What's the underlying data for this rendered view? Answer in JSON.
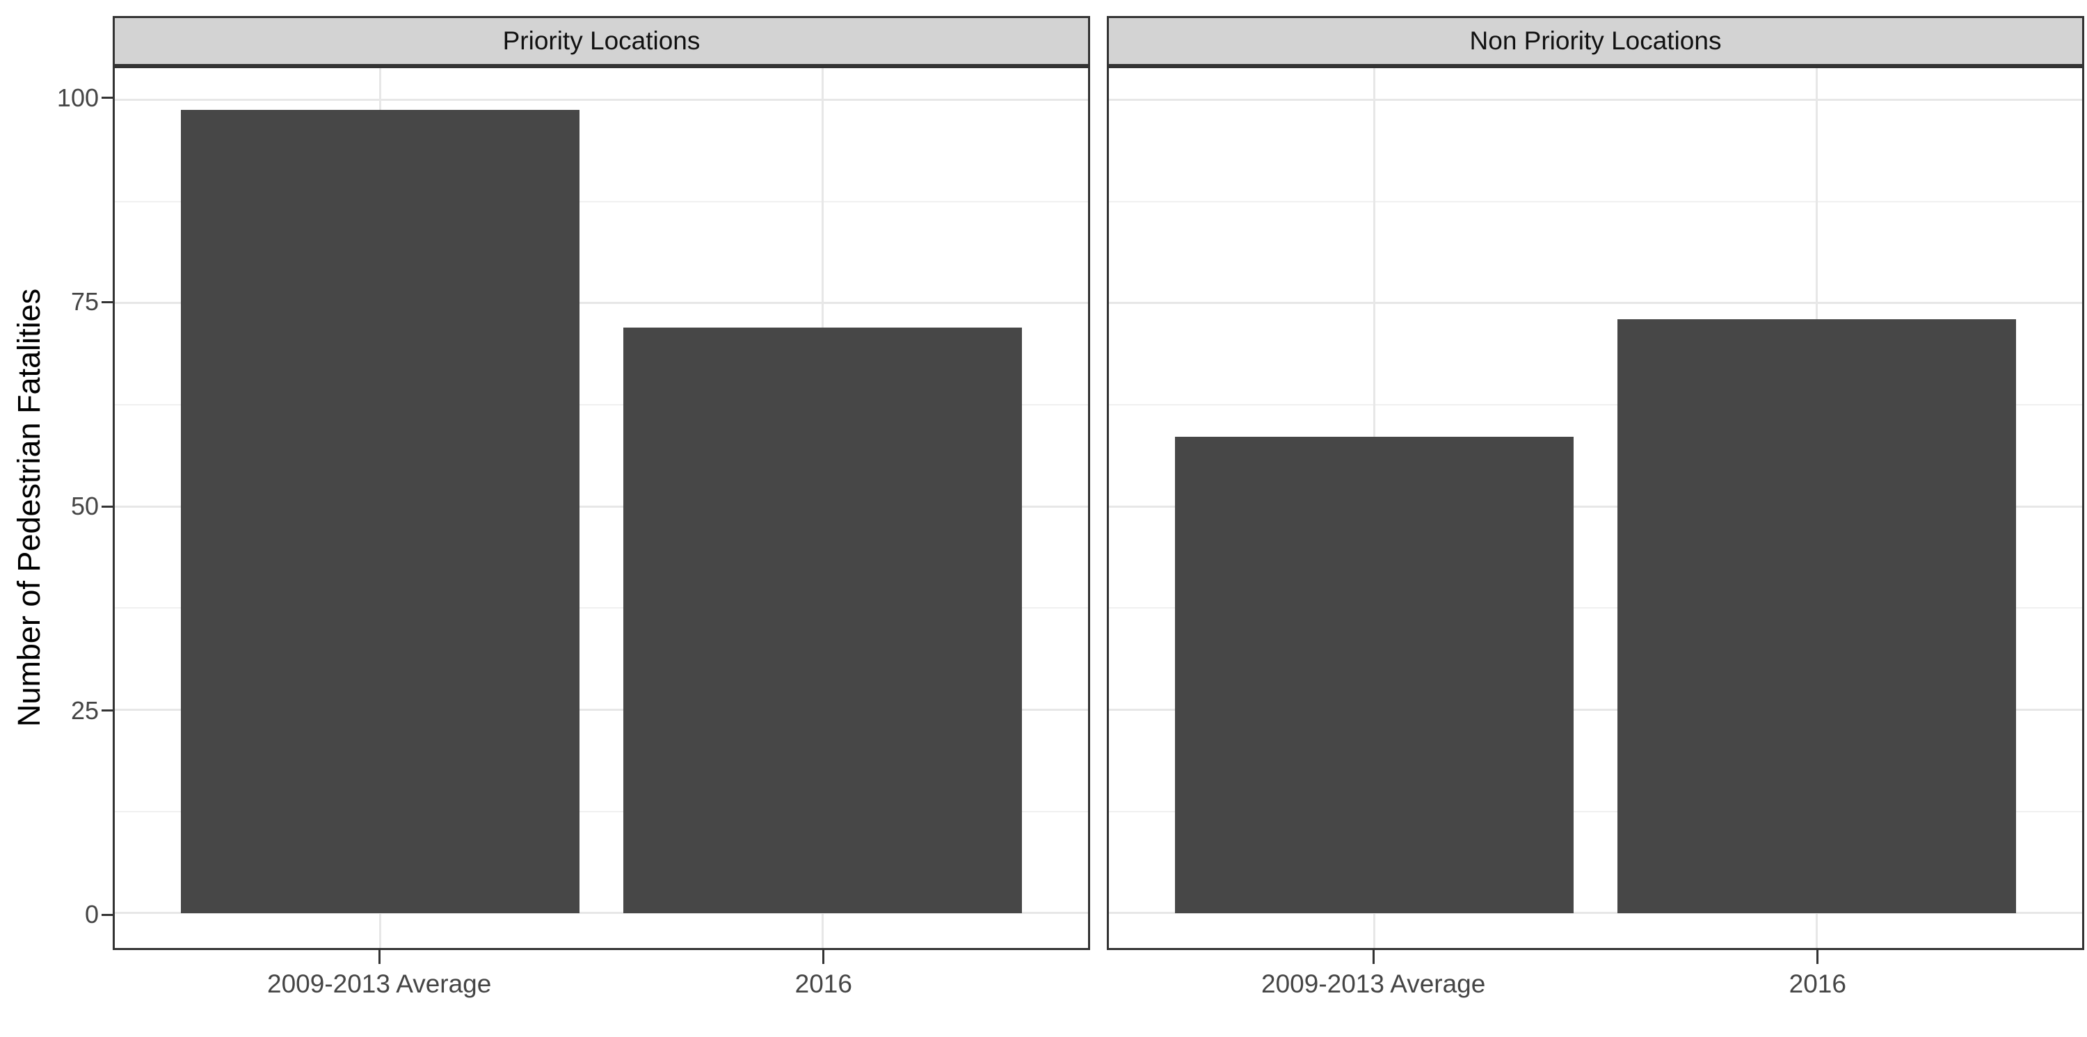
{
  "chart_data": {
    "type": "bar",
    "title": "",
    "xlabel": "",
    "ylabel": "Number of Pedestrian Fatalities",
    "categories": [
      "2009-2013 Average",
      "2016"
    ],
    "facets": [
      {
        "label": "Priority Locations",
        "values": [
          98.8,
          72
        ]
      },
      {
        "label": "Non Priority Locations",
        "values": [
          58.6,
          73
        ]
      }
    ],
    "yticks": [
      0,
      25,
      50,
      75,
      100
    ],
    "yticks_minor": [
      12.5,
      37.5,
      62.5,
      87.5
    ],
    "ylim": [
      -4.3,
      103.9
    ],
    "grid": "major-and-minor",
    "legend_position": "none",
    "bar_width_fraction": 0.9,
    "colors": {
      "bar_fill": "#474747",
      "strip_background": "#D3D3D3",
      "panel_border": "#333333",
      "grid_major": "#E7E7E7",
      "grid_minor": "#F0F0F0",
      "axis_text": "#454545",
      "axis_title": "#000000",
      "background": "#ffffff"
    }
  }
}
